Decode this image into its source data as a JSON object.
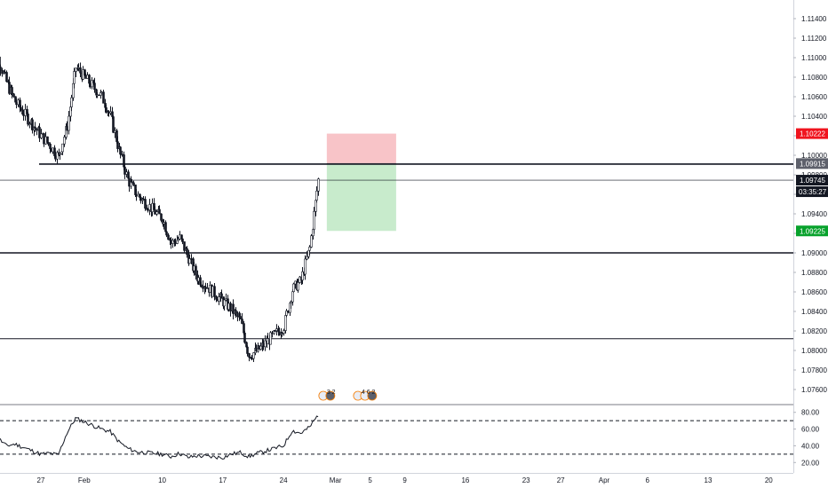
{
  "chart_data": [
    {
      "type": "candlestick",
      "instrument_panel": "price",
      "y_axis_ticks": [
        "1.11400",
        "1.11200",
        "1.11000",
        "1.10800",
        "1.10600",
        "1.10400",
        "1.10200",
        "1.10000",
        "1.09800",
        "1.09600",
        "1.09400",
        "1.09200",
        "1.09000",
        "1.08800",
        "1.08600",
        "1.08400",
        "1.08200",
        "1.08000",
        "1.07800",
        "1.07600"
      ],
      "ylim": [
        1.0745,
        1.1155
      ],
      "x_tick_labels": [
        "27",
        "Feb",
        "10",
        "17",
        "24",
        "Mar",
        "5",
        "9",
        "16",
        "23",
        "27",
        "Apr",
        "6",
        "13",
        "20"
      ],
      "x_tick_dates": [
        "2020-01-27",
        "2020-02-01",
        "2020-02-10",
        "2020-02-17",
        "2020-02-24",
        "2020-03-01",
        "2020-03-05",
        "2020-03-09",
        "2020-03-16",
        "2020-03-23",
        "2020-03-27",
        "2020-04-01",
        "2020-04-06",
        "2020-04-13",
        "2020-04-20"
      ],
      "close_path": [
        [
          "2020-01-21",
          1.109
        ],
        [
          "2020-01-22",
          1.11
        ],
        [
          "2020-01-23",
          1.1075
        ],
        [
          "2020-01-24",
          1.1055
        ],
        [
          "2020-01-27",
          1.102
        ],
        [
          "2020-01-28",
          1.101
        ],
        [
          "2020-01-29",
          1.0998
        ],
        [
          "2020-01-30",
          1.103
        ],
        [
          "2020-01-31",
          1.109
        ],
        [
          "2020-02-03",
          1.106
        ],
        [
          "2020-02-04",
          1.104
        ],
        [
          "2020-02-05",
          1.1005
        ],
        [
          "2020-02-06",
          1.0975
        ],
        [
          "2020-02-07",
          1.096
        ],
        [
          "2020-02-10",
          1.0935
        ],
        [
          "2020-02-11",
          1.091
        ],
        [
          "2020-02-12",
          1.0915
        ],
        [
          "2020-02-13",
          1.0895
        ],
        [
          "2020-02-14",
          1.0875
        ],
        [
          "2020-02-17",
          1.085
        ],
        [
          "2020-02-18",
          1.0842
        ],
        [
          "2020-02-19",
          1.083
        ],
        [
          "2020-02-20",
          1.0795
        ],
        [
          "2020-02-21",
          1.08
        ],
        [
          "2020-02-24",
          1.0825
        ],
        [
          "2020-02-25",
          1.0862
        ],
        [
          "2020-02-26",
          1.0872
        ],
        [
          "2020-02-27",
          1.0905
        ],
        [
          "2020-02-28",
          1.0975
        ]
      ],
      "last_price": "1.09745",
      "countdown": "03:35:27",
      "horizontal_levels": [
        1.0991,
        1.09,
        1.0812
      ],
      "position": {
        "entry": "1.09915",
        "stop": "1.10222",
        "target": "1.09225",
        "start_date": "2020-02-29",
        "end_date": "2020-03-08",
        "colors": {
          "risk": "#f8c4c8",
          "reward": "#c8ebcc"
        }
      },
      "price_labels": [
        {
          "text": "1.10222",
          "bg": "#f0141e",
          "fg": "#ffffff",
          "value": 1.10222
        },
        {
          "text": "1.09915",
          "bg": "#5d606b",
          "fg": "#ffffff",
          "value": 1.09915
        },
        {
          "text": "1.09745",
          "bg": "#131722",
          "fg": "#ffffff",
          "value": 1.09745
        },
        {
          "text": "1.09225",
          "bg": "#08a22c",
          "fg": "#ffffff",
          "value": 1.09225
        }
      ],
      "event_markers": [
        {
          "date": "2020-02-29",
          "text": "3 2"
        },
        {
          "date": "2020-03-04",
          "text": "4 6 2"
        }
      ],
      "grid": false
    },
    {
      "type": "line",
      "instrument_panel": "oscillator",
      "y_axis_ticks": [
        "80.00",
        "60.00",
        "40.00",
        "20.00"
      ],
      "ylim": [
        15,
        85
      ],
      "levels": [
        70,
        30
      ],
      "series": [
        {
          "values": [
            [
              "2020-01-21",
              45
            ],
            [
              "2020-01-22",
              50
            ],
            [
              "2020-01-23",
              40
            ],
            [
              "2020-01-24",
              42
            ],
            [
              "2020-01-27",
              30
            ],
            [
              "2020-01-28",
              31
            ],
            [
              "2020-01-29",
              29
            ],
            [
              "2020-01-30",
              55
            ],
            [
              "2020-01-31",
              73
            ],
            [
              "2020-02-03",
              60
            ],
            [
              "2020-02-04",
              57
            ],
            [
              "2020-02-05",
              45
            ],
            [
              "2020-02-06",
              37
            ],
            [
              "2020-02-07",
              33
            ],
            [
              "2020-02-10",
              30
            ],
            [
              "2020-02-11",
              27
            ],
            [
              "2020-02-12",
              31
            ],
            [
              "2020-02-13",
              26
            ],
            [
              "2020-02-14",
              28
            ],
            [
              "2020-02-17",
              26
            ],
            [
              "2020-02-18",
              30
            ],
            [
              "2020-02-19",
              32
            ],
            [
              "2020-02-20",
              27
            ],
            [
              "2020-02-21",
              31
            ],
            [
              "2020-02-24",
              40
            ],
            [
              "2020-02-25",
              58
            ],
            [
              "2020-02-26",
              55
            ],
            [
              "2020-02-27",
              62
            ],
            [
              "2020-02-28",
              77
            ]
          ]
        }
      ]
    }
  ]
}
